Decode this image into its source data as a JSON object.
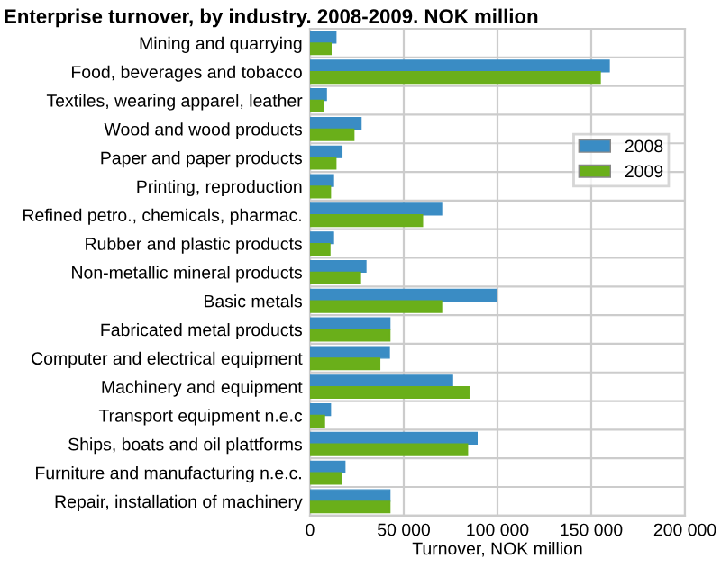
{
  "chart_data": {
    "type": "bar",
    "orientation": "horizontal",
    "title": "Enterprise turnover, by industry. 2008-2009. NOK million",
    "xlabel": "Turnover, NOK million",
    "categories": [
      "Mining and quarrying",
      "Food, beverages and tobacco",
      "Textiles, wearing apparel, leather",
      "Wood and wood products",
      "Paper and paper products",
      "Printing, reproduction",
      "Refined petro., chemicals, pharmac.",
      "Rubber and plastic products",
      "Non-metallic mineral products",
      "Basic metals",
      "Fabricated metal products",
      "Computer and electrical equipment",
      "Machinery and equipment",
      "Transport equipment n.e.c",
      "Ships, boats and oil plattforms",
      "Furniture and manufacturing n.e.c.",
      "Repair, installation of machinery"
    ],
    "series": [
      {
        "name": "2008",
        "color": "#3a8cc4",
        "values": [
          13800,
          159600,
          8700,
          27200,
          17000,
          12500,
          70200,
          12500,
          29800,
          99400,
          42600,
          42300,
          76000,
          10900,
          89100,
          18600,
          42600
        ]
      },
      {
        "name": "2009",
        "color": "#6aaf1a",
        "values": [
          11200,
          154800,
          7000,
          23400,
          13800,
          10900,
          60000,
          10600,
          26900,
          70200,
          42600,
          37200,
          85000,
          7700,
          84000,
          16700,
          42600
        ]
      }
    ],
    "xlim": [
      0,
      200000
    ],
    "xticks": [
      {
        "value": 0,
        "label": "0"
      },
      {
        "value": 50000,
        "label": "50 000"
      },
      {
        "value": 100000,
        "label": "100 000"
      },
      {
        "value": 150000,
        "label": "150 000"
      },
      {
        "value": 200000,
        "label": "200 000"
      }
    ],
    "grid": true,
    "legend": "right"
  }
}
